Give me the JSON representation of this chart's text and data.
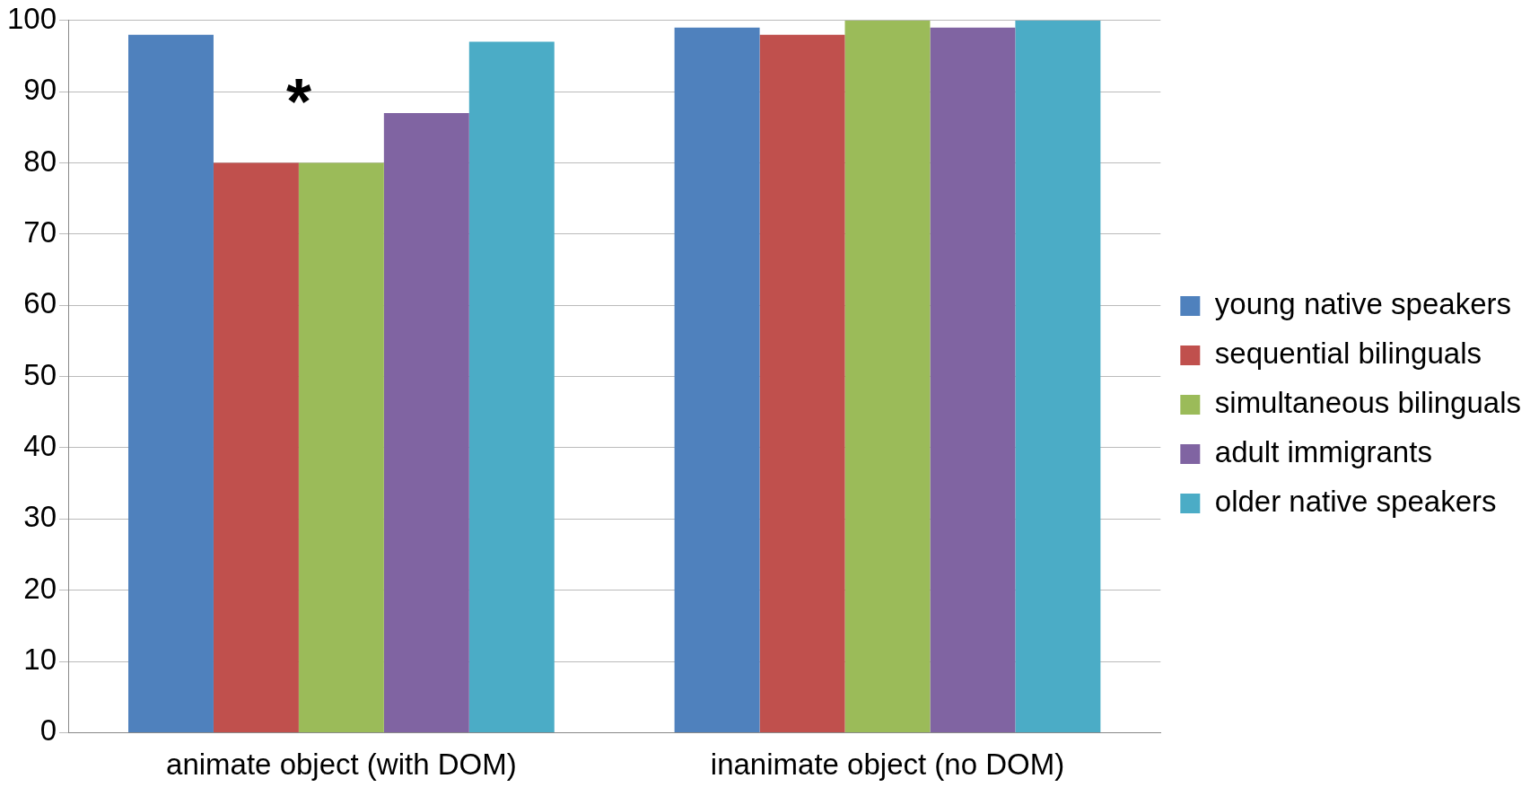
{
  "chart_data": {
    "type": "bar",
    "categories": [
      "animate object (with DOM)",
      "inanimate object (no DOM)"
    ],
    "series": [
      {
        "name": "young native speakers",
        "color": "#4f81bd",
        "values": [
          98,
          99
        ]
      },
      {
        "name": "sequential bilinguals",
        "color": "#c0504d",
        "values": [
          80,
          98
        ]
      },
      {
        "name": "simultaneous bilinguals",
        "color": "#9bbb59",
        "values": [
          80,
          100
        ]
      },
      {
        "name": "adult immigrants",
        "color": "#8064a2",
        "values": [
          87,
          99
        ]
      },
      {
        "name": "older native speakers",
        "color": "#4bacc6",
        "values": [
          97,
          100
        ]
      }
    ],
    "ylim": [
      0,
      100
    ],
    "yticks": [
      0,
      10,
      20,
      30,
      40,
      50,
      60,
      70,
      80,
      90,
      100
    ],
    "grid": "y",
    "legend": "right",
    "annotations": [
      "*"
    ]
  }
}
